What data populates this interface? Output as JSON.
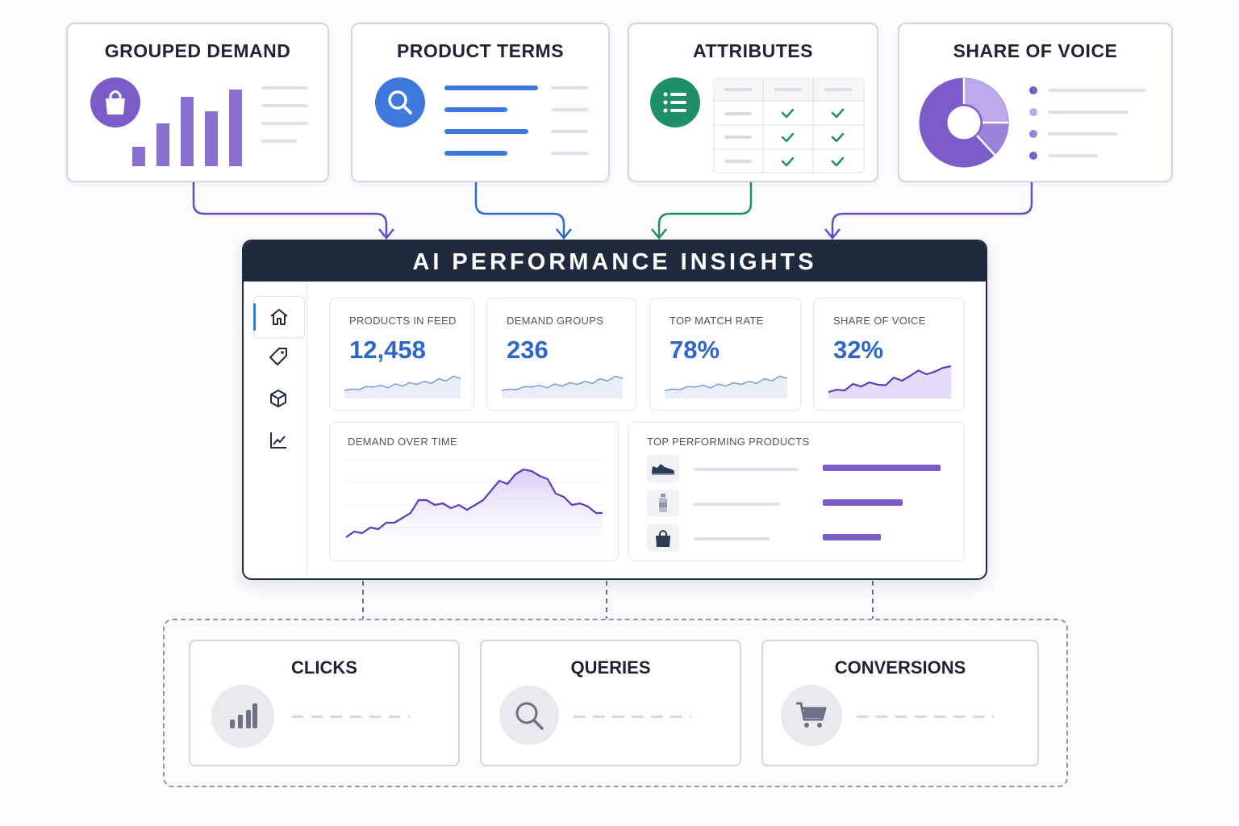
{
  "sources": {
    "grouped_demand": {
      "title": "GROUPED DEMAND",
      "icon": "shopping-bag-icon",
      "bars": [
        0.2,
        0.43,
        0.7,
        0.56,
        0.78
      ]
    },
    "product_terms": {
      "title": "PRODUCT TERMS",
      "icon": "search-icon"
    },
    "attributes": {
      "title": "ATTRIBUTES",
      "icon": "list-icon"
    },
    "share_of_voice": {
      "title": "SHARE OF VOICE",
      "icon": "donut-chart-icon"
    }
  },
  "panel": {
    "title": "AI PERFORMANCE INSIGHTS",
    "nav": [
      "home-icon",
      "tag-icon",
      "box-icon",
      "line-chart-icon"
    ],
    "kpis": [
      {
        "label": "PRODUCTS IN FEED",
        "value": "12,458"
      },
      {
        "label": "DEMAND GROUPS",
        "value": "236"
      },
      {
        "label": "TOP MATCH RATE",
        "value": "78%"
      },
      {
        "label": "SHARE OF VOICE",
        "value": "32%"
      }
    ],
    "demand_over_time": {
      "label": "DEMAND OVER TIME"
    },
    "top_products": {
      "label": "TOP PERFORMING PRODUCTS",
      "items": [
        {
          "icon": "sneaker-icon",
          "level": 1.0
        },
        {
          "icon": "bottle-icon",
          "level": 0.68
        },
        {
          "icon": "bag-icon",
          "level": 0.49
        }
      ]
    }
  },
  "outputs": [
    {
      "title": "CLICKS",
      "icon": "bar-chart-icon"
    },
    {
      "title": "QUERIES",
      "icon": "search-icon"
    },
    {
      "title": "CONVERSIONS",
      "icon": "cart-icon"
    }
  ],
  "colors": {
    "purple": "#7b5cc9",
    "blue": "#3d79dc",
    "green": "#1f8f6a",
    "navy": "#1f2a3c"
  }
}
